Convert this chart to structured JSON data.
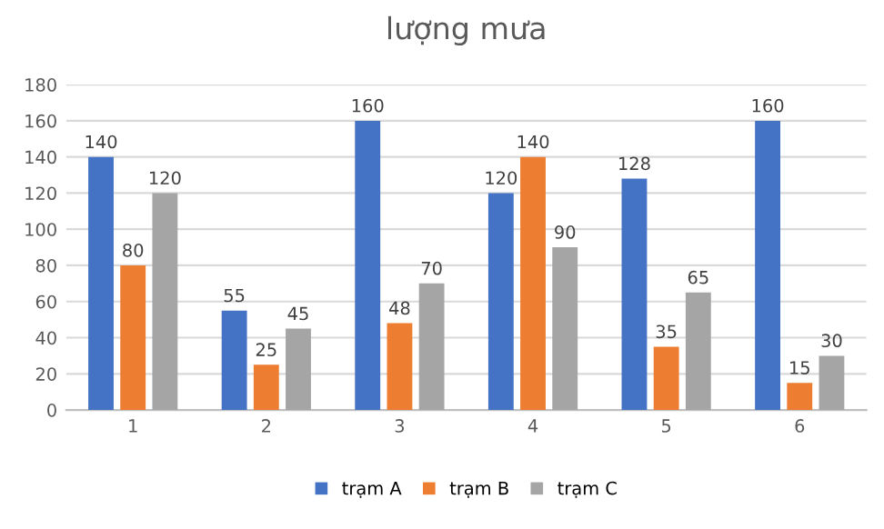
{
  "chart_data": {
    "type": "bar",
    "title": "lượng mưa",
    "categories": [
      "1",
      "2",
      "3",
      "4",
      "5",
      "6"
    ],
    "series": [
      {
        "name": "trạm A",
        "color": "#4472c4",
        "values": [
          140,
          55,
          160,
          120,
          128,
          160
        ]
      },
      {
        "name": "trạm B",
        "color": "#ed7d31",
        "values": [
          80,
          25,
          48,
          140,
          35,
          15
        ]
      },
      {
        "name": "trạm C",
        "color": "#a5a5a5",
        "values": [
          120,
          45,
          70,
          90,
          65,
          30
        ]
      }
    ],
    "ylim": [
      0,
      180
    ],
    "yticks": [
      0,
      20,
      40,
      60,
      80,
      100,
      120,
      140,
      160,
      180
    ],
    "grid": "y",
    "legend": "bottom",
    "data_labels": true
  }
}
